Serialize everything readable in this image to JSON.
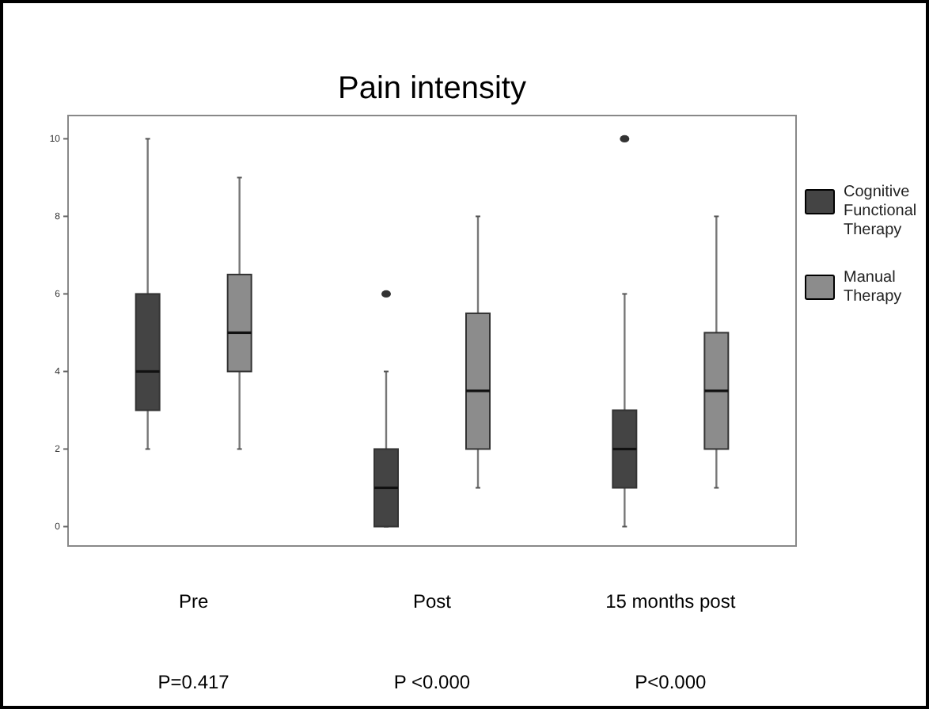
{
  "chart_data": {
    "type": "box",
    "title": "Pain intensity",
    "categories": [
      "Pre",
      "Post",
      "15 months post"
    ],
    "ylim": [
      -0.5,
      10.6
    ],
    "yticks": [
      0,
      2,
      4,
      6,
      8,
      10
    ],
    "grid": false,
    "legend": "right",
    "series": [
      {
        "name": "Cognitive Functional Therapy",
        "color": "#444444",
        "boxes": [
          {
            "low": 2,
            "q1": 3,
            "median": 4,
            "q3": 6,
            "high": 10
          },
          {
            "low": 0,
            "q1": 0,
            "median": 1,
            "q3": 2,
            "high": 4,
            "outliers": [
              6
            ]
          },
          {
            "low": 0,
            "q1": 1,
            "median": 2,
            "q3": 3,
            "high": 6,
            "outliers": [
              10
            ]
          }
        ]
      },
      {
        "name": "Manual Therapy",
        "color": "#8c8c8c",
        "boxes": [
          {
            "low": 2,
            "q1": 4,
            "median": 5,
            "q3": 6.5,
            "high": 9
          },
          {
            "low": 1,
            "q1": 2,
            "median": 3.5,
            "q3": 5.5,
            "high": 8
          },
          {
            "low": 1,
            "q1": 2,
            "median": 3.5,
            "q3": 5,
            "high": 8
          }
        ]
      }
    ],
    "annotations": [
      "P=0.417",
      "P <0.000",
      "P<0.000"
    ]
  }
}
